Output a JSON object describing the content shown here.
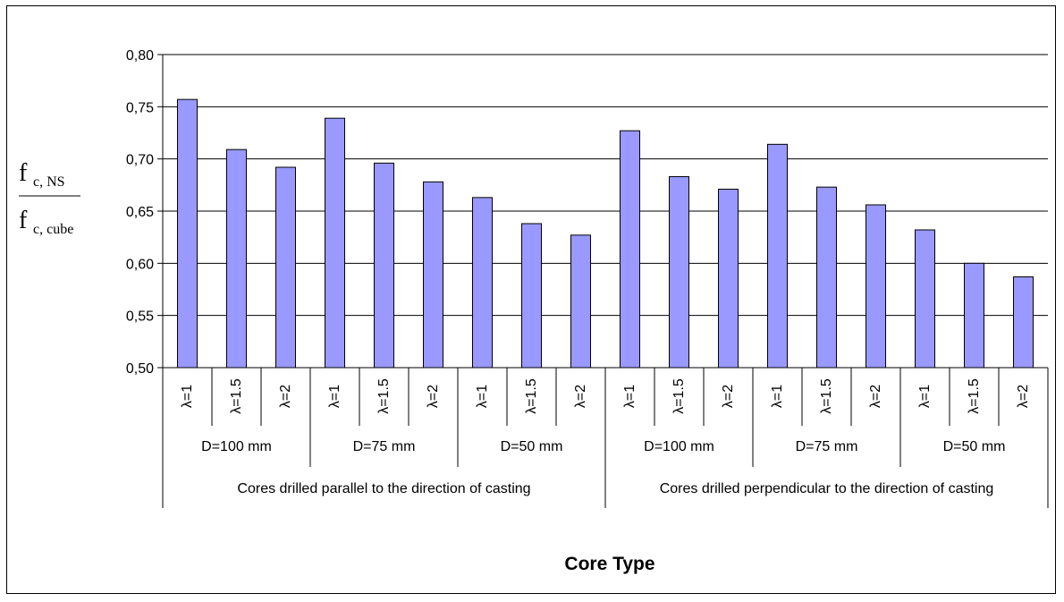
{
  "chart_data": {
    "type": "bar",
    "categories": [
      "λ=1",
      "λ=1.5",
      "λ=2",
      "λ=1",
      "λ=1.5",
      "λ=2",
      "λ=1",
      "λ=1.5",
      "λ=2",
      "λ=1",
      "λ=1.5",
      "λ=2",
      "λ=1",
      "λ=1.5",
      "λ=2",
      "λ=1",
      "λ=1.5",
      "λ=2"
    ],
    "values": [
      0.757,
      0.709,
      0.692,
      0.739,
      0.696,
      0.678,
      0.663,
      0.638,
      0.627,
      0.727,
      0.683,
      0.671,
      0.714,
      0.673,
      0.656,
      0.632,
      0.6,
      0.587
    ],
    "diameter_groups": [
      "D=100 mm",
      "D=75 mm",
      "D=50 mm",
      "D=100 mm",
      "D=75 mm",
      "D=50 mm"
    ],
    "orientation_groups": [
      "Cores drilled parallel to the direction of casting",
      "Cores drilled perpendicular to the direction of casting"
    ],
    "xlabel": "Core Type",
    "ylabel": {
      "numerator": {
        "main": "f",
        "sub": "c, NS"
      },
      "denominator": {
        "main": "f",
        "sub": "c, cube"
      }
    },
    "ylim": [
      0.5,
      0.8
    ],
    "yticks": [
      "0,50",
      "0,55",
      "0,60",
      "0,65",
      "0,70",
      "0,75",
      "0,80"
    ],
    "grid": true,
    "bar_color": "#9999ff",
    "legend": "none"
  }
}
